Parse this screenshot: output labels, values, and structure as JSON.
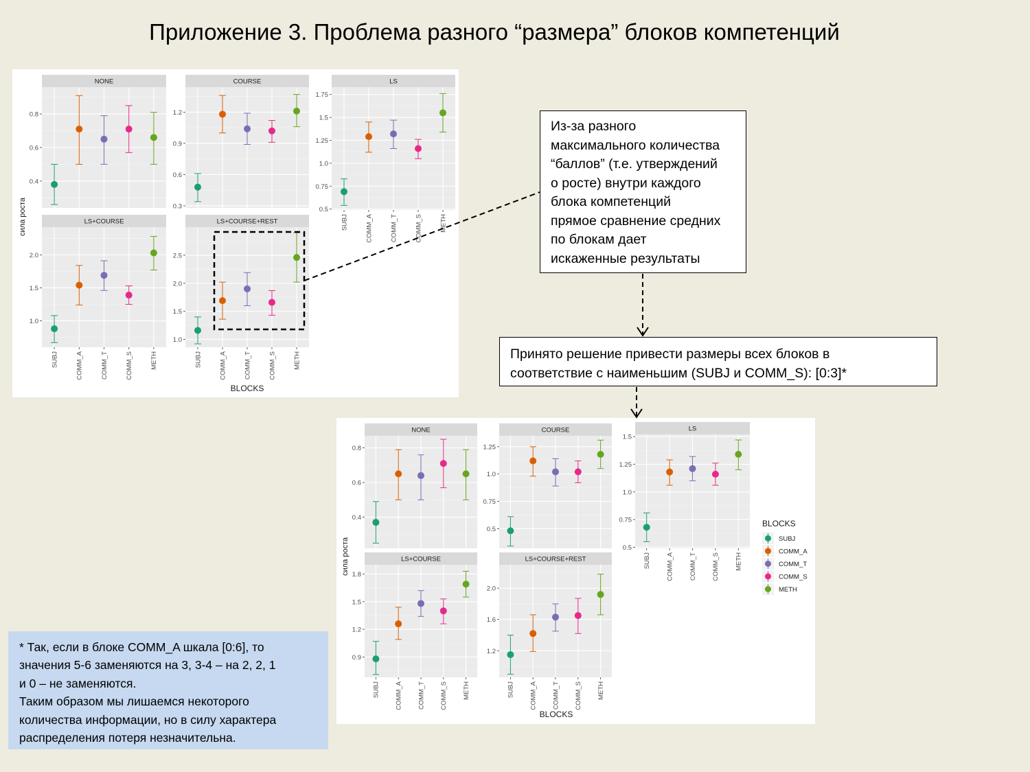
{
  "title": "Приложение 3. Проблема разного “размера” блоков компетенций",
  "notes": {
    "note1": "Из-за разного\nмаксимального количества\n“баллов” (т.е. утверждений\nо росте) внутри каждого\nблока компетенций\nпрямое сравнение средних\nпо блокам дает\nискаженные результаты",
    "note2": "Принято решение привести размеры всех блоков в\nсоответствие с наименьшим (SUBJ и COMM_S): [0:3]*",
    "footnote": "* Так, если в блоке COMM_A шкала [0:6], то\nзначения 5-6 заменяются на 3, 3-4 – на 2,  2, 1\nи 0 – не заменяются.\nТаким образом мы лишаемся некоторого\nколичества информации, но в силу характера\nраспределения потеря незначительна."
  },
  "colors": {
    "SUBJ": "#1b9e77",
    "COMM_A": "#d95f02",
    "COMM_T": "#7570b3",
    "COMM_S": "#e7298a",
    "METH": "#66a61e"
  },
  "chart_data": [
    {
      "type": "scatter",
      "xlabel": "BLOCKS",
      "ylabel": "сила роста",
      "categories": [
        "SUBJ",
        "COMM_A",
        "COMM_T",
        "COMM_S",
        "METH"
      ],
      "panels": [
        {
          "name": "NONE",
          "yticks": [
            0.4,
            0.6,
            0.8
          ],
          "means": [
            0.38,
            0.71,
            0.65,
            0.71,
            0.66
          ],
          "lower": [
            0.26,
            0.5,
            0.5,
            0.57,
            0.5
          ],
          "upper": [
            0.5,
            0.91,
            0.79,
            0.85,
            0.81
          ]
        },
        {
          "name": "COURSE",
          "yticks": [
            0.3,
            0.6,
            0.9,
            1.2
          ],
          "means": [
            0.48,
            1.18,
            1.04,
            1.02,
            1.21
          ],
          "lower": [
            0.34,
            1.0,
            0.89,
            0.91,
            1.06
          ],
          "upper": [
            0.61,
            1.36,
            1.19,
            1.12,
            1.37
          ]
        },
        {
          "name": "LS",
          "yticks": [
            0.5,
            0.75,
            1.0,
            1.25,
            1.5,
            1.75
          ],
          "means": [
            0.69,
            1.29,
            1.32,
            1.16,
            1.55
          ],
          "lower": [
            0.54,
            1.12,
            1.16,
            1.05,
            1.34
          ],
          "upper": [
            0.83,
            1.45,
            1.47,
            1.26,
            1.76
          ]
        },
        {
          "name": "LS+COURSE",
          "yticks": [
            1.0,
            1.5,
            2.0
          ],
          "means": [
            0.88,
            1.54,
            1.69,
            1.39,
            2.03
          ],
          "lower": [
            0.67,
            1.24,
            1.46,
            1.25,
            1.77
          ],
          "upper": [
            1.08,
            1.84,
            1.91,
            1.53,
            2.28
          ]
        },
        {
          "name": "LS+COURSE+REST",
          "yticks": [
            1.0,
            1.5,
            2.0,
            2.5
          ],
          "means": [
            1.16,
            1.69,
            1.9,
            1.66,
            2.46
          ],
          "lower": [
            0.92,
            1.36,
            1.6,
            1.43,
            2.02
          ],
          "upper": [
            1.4,
            2.02,
            2.19,
            1.87,
            2.9
          ]
        }
      ]
    },
    {
      "type": "scatter",
      "xlabel": "BLOCKS",
      "ylabel": "сила роста",
      "legend": {
        "title": "BLOCKS",
        "position": "right"
      },
      "categories": [
        "SUBJ",
        "COMM_A",
        "COMM_T",
        "COMM_S",
        "METH"
      ],
      "panels": [
        {
          "name": "NONE",
          "yticks": [
            0.4,
            0.6,
            0.8
          ],
          "means": [
            0.37,
            0.65,
            0.64,
            0.71,
            0.65
          ],
          "lower": [
            0.25,
            0.5,
            0.5,
            0.57,
            0.5
          ],
          "upper": [
            0.49,
            0.79,
            0.76,
            0.85,
            0.79
          ]
        },
        {
          "name": "COURSE",
          "yticks": [
            0.5,
            0.75,
            1.0,
            1.25
          ],
          "means": [
            0.48,
            1.12,
            1.02,
            1.02,
            1.18
          ],
          "lower": [
            0.34,
            0.98,
            0.89,
            0.92,
            1.05
          ],
          "upper": [
            0.61,
            1.25,
            1.14,
            1.12,
            1.31
          ]
        },
        {
          "name": "LS",
          "yticks": [
            0.5,
            0.75,
            1.0,
            1.25,
            1.5
          ],
          "means": [
            0.68,
            1.18,
            1.21,
            1.16,
            1.34
          ],
          "lower": [
            0.55,
            1.06,
            1.1,
            1.06,
            1.2
          ],
          "upper": [
            0.81,
            1.29,
            1.32,
            1.26,
            1.47
          ]
        },
        {
          "name": "LS+COURSE",
          "yticks": [
            0.9,
            1.2,
            1.5,
            1.8
          ],
          "means": [
            0.88,
            1.26,
            1.48,
            1.4,
            1.69
          ],
          "lower": [
            0.71,
            1.09,
            1.34,
            1.26,
            1.55
          ],
          "upper": [
            1.07,
            1.44,
            1.62,
            1.53,
            1.83
          ]
        },
        {
          "name": "LS+COURSE+REST",
          "yticks": [
            1.2,
            1.6,
            2.0
          ],
          "means": [
            1.15,
            1.42,
            1.63,
            1.65,
            1.92
          ],
          "lower": [
            0.9,
            1.19,
            1.45,
            1.42,
            1.66
          ],
          "upper": [
            1.4,
            1.66,
            1.8,
            1.87,
            2.18
          ]
        }
      ]
    }
  ]
}
